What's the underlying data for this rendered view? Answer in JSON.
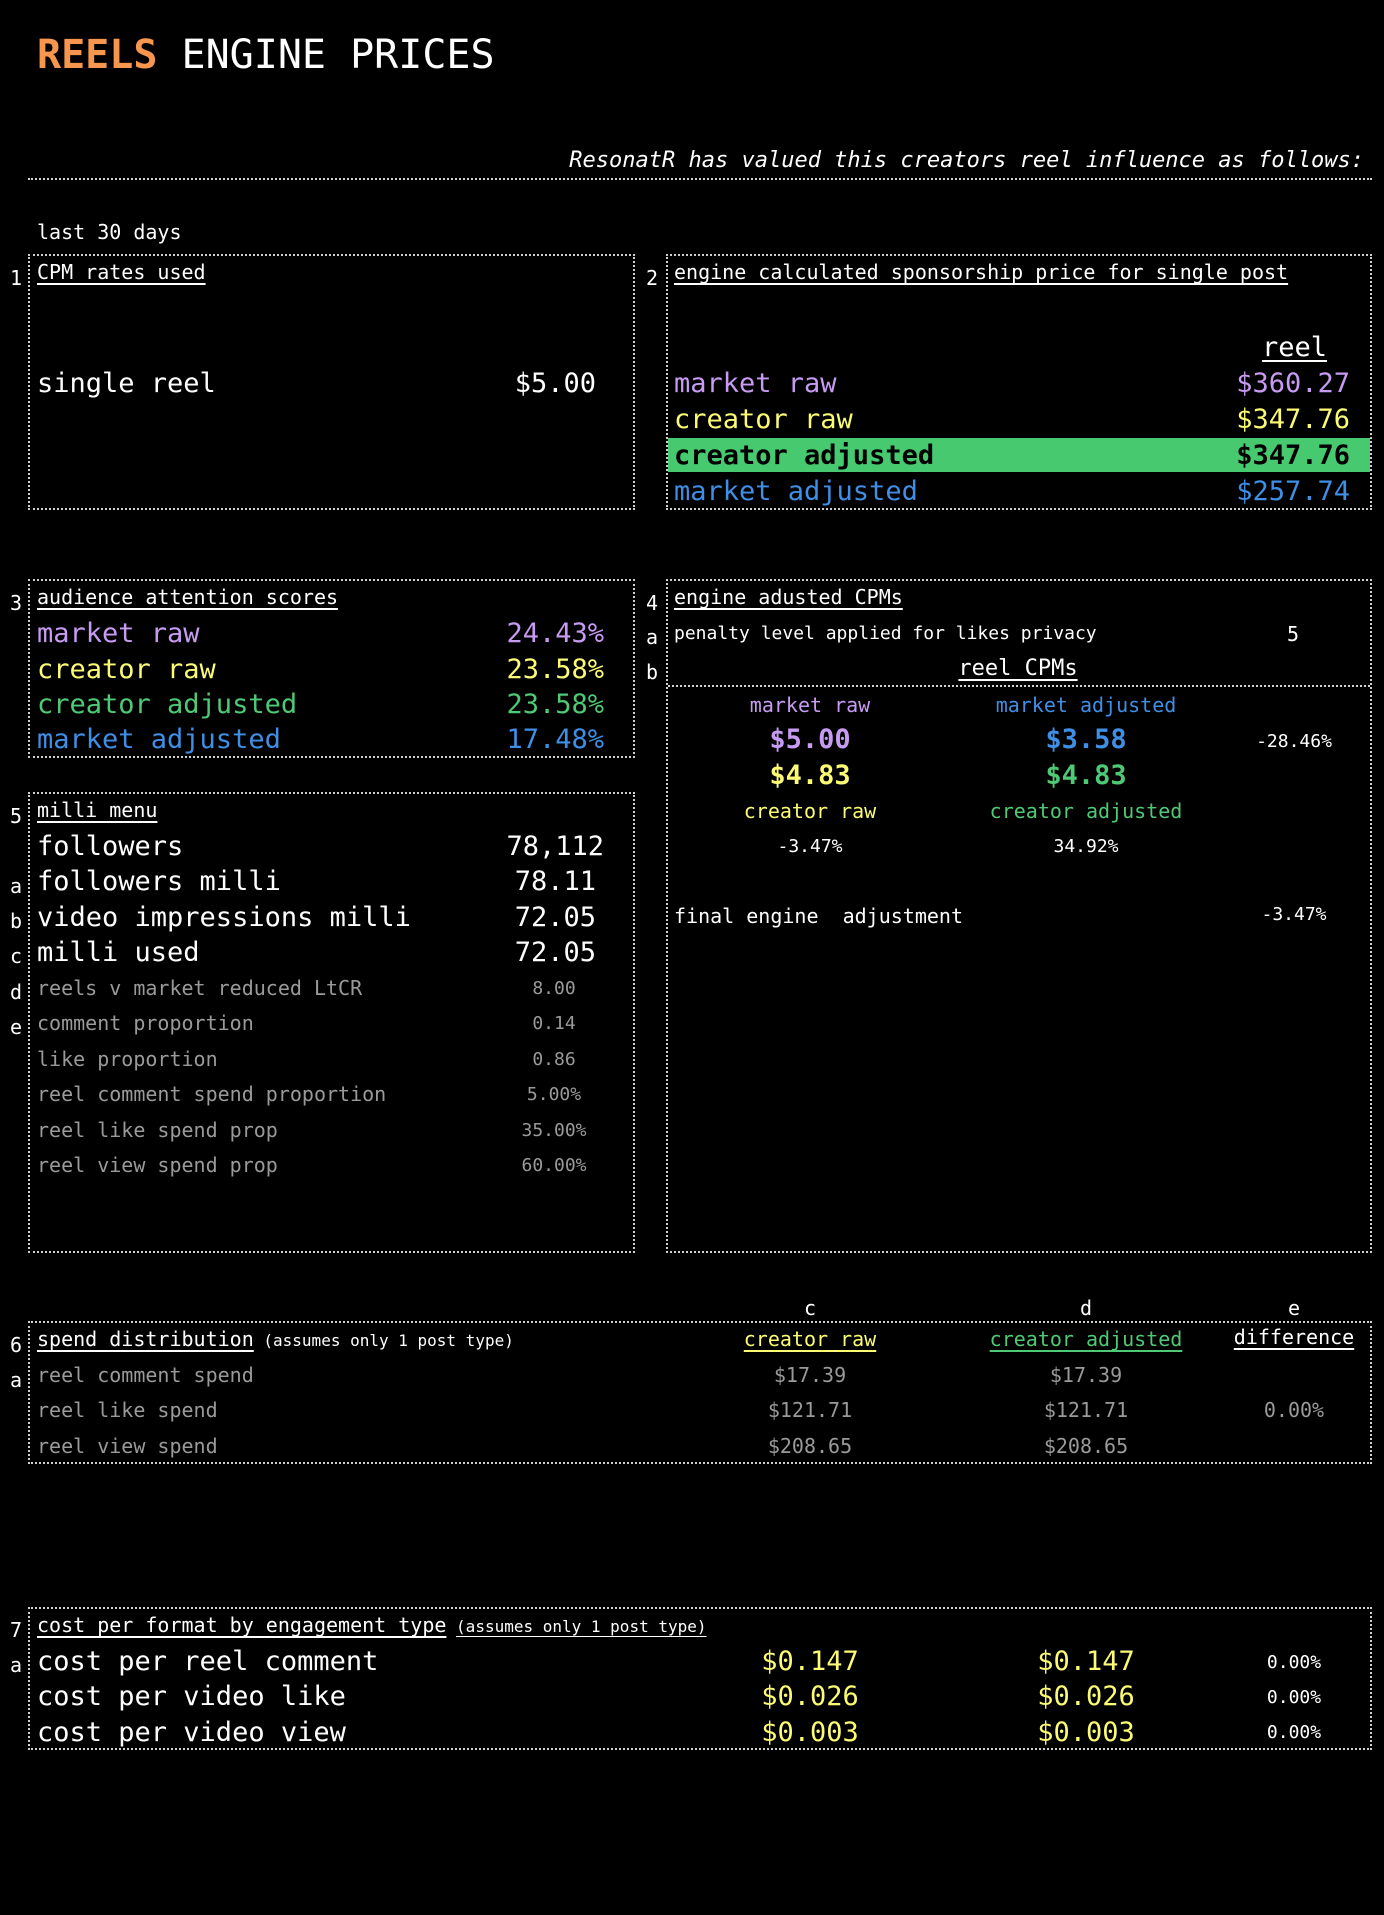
{
  "title": {
    "highlight": "REELS",
    "rest": " ENGINE PRICES"
  },
  "intro": "ResonatR has valued this creators reel influence as follows:",
  "period": "last 30 days",
  "markers": [
    "1",
    "2",
    "3",
    "4",
    "a",
    "b",
    "5",
    "a",
    "b",
    "c",
    "d",
    "e",
    "6",
    "a",
    "7",
    "a"
  ],
  "section1": {
    "num": "1",
    "title": "CPM rates used",
    "label": "single reel",
    "value": "$5.00"
  },
  "section2": {
    "num": "2",
    "title": "engine calculated sponsorship price for single post",
    "col_header": "reel",
    "rows": [
      {
        "label": "market raw",
        "value": "$360.27"
      },
      {
        "label": "creator raw",
        "value": "$347.76"
      },
      {
        "label": "creator adjusted",
        "value": "$347.76"
      },
      {
        "label": "market adjusted",
        "value": "$257.74"
      }
    ],
    "highlight_color": "#46c96f"
  },
  "section3": {
    "num": "3",
    "title": "audience attention scores",
    "rows": [
      {
        "label": "market raw",
        "value": "24.43%"
      },
      {
        "label": "creator raw",
        "value": "23.58%"
      },
      {
        "label": "creator adjusted",
        "value": "23.58%"
      },
      {
        "label": "market adjusted",
        "value": "17.48%"
      }
    ]
  },
  "section4": {
    "num": "4",
    "title": "engine adusted CPMs",
    "penalty_label": "penalty level applied for likes privacy",
    "penalty_value": "5",
    "reel_cpms": "reel CPMs",
    "market_raw_label": "market raw",
    "market_adjusted_label": "market adjusted",
    "market_raw_value": "$5.00",
    "market_adjusted_value": "$3.58",
    "market_diff": "-28.46%",
    "creator_raw_value": "$4.83",
    "creator_adjusted_value": "$4.83",
    "creator_raw_label": "creator raw",
    "creator_adjusted_label": "creator adjusted",
    "raw_diff": "-3.47%",
    "adjusted_diff": "34.92%",
    "final_label": "final engine  adjustment",
    "final_value": "-3.47%"
  },
  "section5": {
    "num": "5",
    "title": "milli menu",
    "main_rows": [
      {
        "label": "followers",
        "value": "78,112"
      },
      {
        "label": "followers milli",
        "value": "78.11"
      },
      {
        "label": "video impressions milli",
        "value": "72.05"
      },
      {
        "label": "milli used",
        "value": "72.05"
      }
    ],
    "minor_rows": [
      {
        "label": "reels v market reduced LtCR",
        "value": "8.00"
      },
      {
        "label": "comment proportion",
        "value": "0.14"
      },
      {
        "label": "like proportion",
        "value": "0.86"
      },
      {
        "label": "reel comment spend proportion",
        "value": "5.00%"
      },
      {
        "label": "reel like spend prop",
        "value": "35.00%"
      },
      {
        "label": "reel view spend prop",
        "value": "60.00%"
      }
    ]
  },
  "section6": {
    "num": "6",
    "col_letters": [
      "c",
      "d",
      "e"
    ],
    "title": "spend distribution",
    "note": "(assumes only 1 post type)",
    "headers": [
      "creator raw",
      "creator adjusted",
      "difference"
    ],
    "rows": [
      {
        "label": "reel comment spend",
        "raw": "$17.39",
        "adj": "$17.39",
        "diff": ""
      },
      {
        "label": "reel like spend",
        "raw": "$121.71",
        "adj": "$121.71",
        "diff": "0.00%"
      },
      {
        "label": "reel view spend",
        "raw": "$208.65",
        "adj": "$208.65",
        "diff": ""
      }
    ]
  },
  "section7": {
    "num": "7",
    "title": "cost per format by engagement type",
    "note": "(assumes only 1 post type)",
    "rows": [
      {
        "label": "cost per reel comment",
        "raw": "$0.147",
        "adj": "$0.147",
        "diff": "0.00%"
      },
      {
        "label": "cost per video like",
        "raw": "$0.026",
        "adj": "$0.026",
        "diff": "0.00%"
      },
      {
        "label": "cost per video view",
        "raw": "$0.003",
        "adj": "$0.003",
        "diff": "0.00%"
      }
    ]
  }
}
